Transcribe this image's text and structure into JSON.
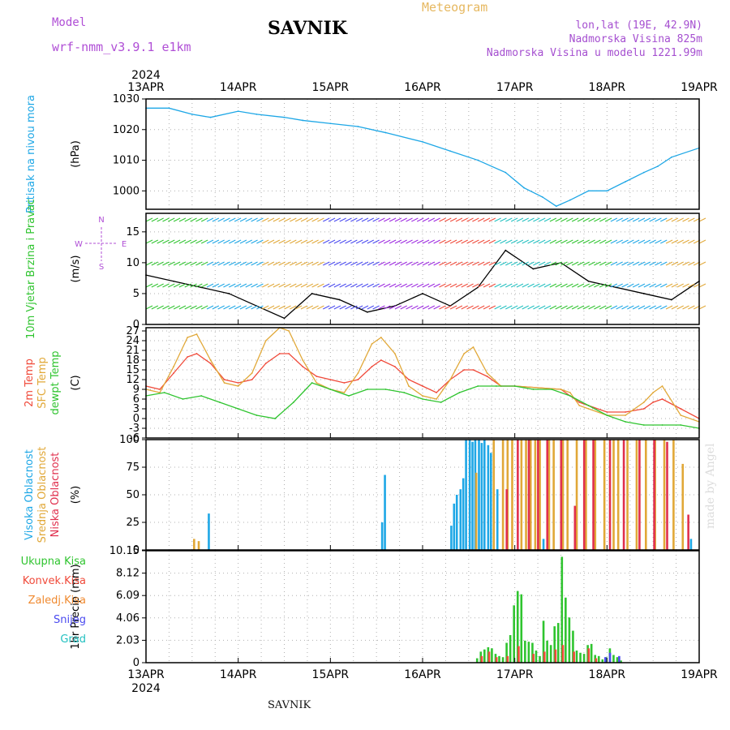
{
  "header": {
    "model_label": "Model",
    "model_name": "wrf-nmm_v3.9.1 e1km",
    "station": "SAVNIK",
    "product": "Meteogram",
    "coords": "lon,lat (19E, 42.9N)",
    "altitude": "Nadmorska Visina 825m",
    "model_altitude": "Nadmorska Visina u modelu 1221.99m"
  },
  "footer": {
    "station": "SAVNIK",
    "credit": "made by Angel"
  },
  "colors": {
    "pressure": "#1ea7e6",
    "temp2m": "#f04a3a",
    "sfc_temp": "#e1a838",
    "dewpt": "#2fc42f",
    "cloud_high": "#1ea7e6",
    "cloud_mid": "#e1a838",
    "cloud_low": "#e0304e",
    "rain_total": "#2fc42f",
    "rain_conv": "#f04a3a",
    "rain_frz": "#f08a30",
    "snow": "#4a4af0",
    "hail": "#22c0c0"
  },
  "chart_data": [
    {
      "type": "line",
      "panel": "pressure",
      "title": "Pritisak na nivou mora",
      "ylabel": "(hPa)",
      "x_start": "2024-04-13",
      "x_end": "2024-04-19",
      "x_ticks": [
        "13APR",
        "14APR",
        "15APR",
        "16APR",
        "17APR",
        "18APR",
        "19APR"
      ],
      "x_year": "2024",
      "ylim": [
        994,
        1030
      ],
      "y_ticks": [
        "1000",
        "1010",
        "1020",
        "1030"
      ],
      "y_tick_values": [
        1000,
        1010,
        1020,
        1030
      ],
      "series": [
        {
          "key": "pressure",
          "x_days": [
            0,
            0.25,
            0.5,
            0.7,
            1.0,
            1.2,
            1.5,
            1.7,
            2.0,
            2.3,
            2.6,
            3.0,
            3.3,
            3.6,
            3.9,
            4.1,
            4.3,
            4.45,
            4.6,
            4.8,
            5.0,
            5.2,
            5.4,
            5.55,
            5.7,
            6.0
          ],
          "y": [
            1027,
            1027,
            1025,
            1024,
            1026,
            1025,
            1024,
            1023,
            1022,
            1021,
            1019,
            1016,
            1013,
            1010,
            1006,
            1001,
            998,
            995,
            997,
            1000,
            1000,
            1003,
            1006,
            1008,
            1011,
            1014
          ]
        }
      ]
    },
    {
      "type": "line",
      "panel": "wind",
      "title": "10m Vjetar Brzina i Pravac",
      "ylabel": "(m/s)",
      "ylim": [
        0,
        18
      ],
      "y_ticks": [
        "0",
        "5",
        "10",
        "15"
      ],
      "y_tick_values": [
        0,
        5,
        10,
        15
      ],
      "compass": [
        "N",
        "E",
        "S",
        "W"
      ],
      "series": [
        {
          "name": "speed",
          "x_days": [
            0,
            0.3,
            0.6,
            0.9,
            1.2,
            1.5,
            1.8,
            2.1,
            2.4,
            2.7,
            3.0,
            3.3,
            3.6,
            3.9,
            4.2,
            4.5,
            4.8,
            5.1,
            5.4,
            5.7,
            6.0
          ],
          "y": [
            8,
            7,
            6,
            5,
            3,
            1,
            5,
            4,
            2,
            3,
            5,
            3,
            6,
            12,
            9,
            10,
            7,
            6,
            5,
            4,
            7
          ]
        }
      ]
    },
    {
      "type": "line",
      "panel": "temperature",
      "ylabel": "(C)",
      "series_labels": [
        "2m Temp",
        "SFC Temp",
        "dewpt Temp"
      ],
      "ylim": [
        -6,
        28
      ],
      "y_ticks": [
        "-6",
        "-3",
        "0",
        "3",
        "6",
        "9",
        "12",
        "15",
        "18",
        "21",
        "24",
        "27"
      ],
      "y_tick_values": [
        -6,
        -3,
        0,
        3,
        6,
        9,
        12,
        15,
        18,
        21,
        24,
        27
      ],
      "series": [
        {
          "key": "temp2m",
          "name": "2m Temp",
          "x_days": [
            0,
            0.15,
            0.3,
            0.45,
            0.55,
            0.7,
            0.85,
            1.0,
            1.15,
            1.3,
            1.45,
            1.55,
            1.7,
            1.85,
            2.0,
            2.15,
            2.3,
            2.45,
            2.55,
            2.7,
            2.85,
            3.0,
            3.15,
            3.3,
            3.45,
            3.55,
            3.7,
            3.85,
            4.0,
            4.5,
            4.6,
            4.7,
            4.8,
            5.0,
            5.2,
            5.4,
            5.5,
            5.6,
            5.8,
            6.0
          ],
          "y": [
            10,
            9,
            14,
            19,
            20,
            17,
            12,
            11,
            12,
            17,
            20,
            20,
            16,
            13,
            12,
            11,
            12,
            16,
            18,
            16,
            12,
            10,
            8,
            12,
            15,
            15,
            13,
            10,
            10,
            9,
            7,
            5,
            4,
            2,
            2,
            3,
            5,
            6,
            3,
            0
          ]
        },
        {
          "key": "sfc_temp",
          "name": "SFC Temp",
          "x_days": [
            0,
            0.15,
            0.3,
            0.45,
            0.55,
            0.7,
            0.85,
            1.0,
            1.15,
            1.3,
            1.45,
            1.55,
            1.7,
            1.85,
            2.0,
            2.15,
            2.3,
            2.45,
            2.55,
            2.7,
            2.85,
            3.0,
            3.15,
            3.3,
            3.45,
            3.55,
            3.7,
            3.85,
            4.0,
            4.5,
            4.6,
            4.7,
            4.8,
            5.0,
            5.2,
            5.4,
            5.5,
            5.6,
            5.8,
            6.0
          ],
          "y": [
            9,
            8,
            16,
            25,
            26,
            18,
            11,
            10,
            14,
            24,
            28,
            27,
            18,
            11,
            9,
            8,
            14,
            23,
            25,
            20,
            10,
            7,
            6,
            12,
            20,
            22,
            14,
            10,
            10,
            9,
            8,
            4,
            3,
            1,
            1,
            5,
            8,
            10,
            1,
            -1
          ]
        },
        {
          "key": "dewpt",
          "name": "dewpt Temp",
          "x_days": [
            0,
            0.2,
            0.4,
            0.6,
            0.8,
            1.0,
            1.2,
            1.4,
            1.6,
            1.8,
            2.0,
            2.2,
            2.4,
            2.6,
            2.8,
            3.0,
            3.2,
            3.4,
            3.6,
            3.8,
            4.0,
            4.2,
            4.4,
            4.6,
            4.8,
            5.0,
            5.2,
            5.4,
            5.6,
            5.8,
            6.0
          ],
          "y": [
            7,
            8,
            6,
            7,
            5,
            3,
            1,
            0,
            5,
            11,
            9,
            7,
            9,
            9,
            8,
            6,
            5,
            8,
            10,
            10,
            10,
            9,
            9,
            7,
            4,
            1,
            -1,
            -2,
            -2,
            -2,
            -3
          ]
        }
      ]
    },
    {
      "type": "bar",
      "panel": "cloud",
      "ylabel": "(%)",
      "series_labels": [
        "Visoka Oblacnost",
        "Srednja Oblacnost",
        "Niska Oblacnost"
      ],
      "ylim": [
        0,
        100
      ],
      "y_ticks": [
        "0",
        "25",
        "50",
        "75",
        "100"
      ],
      "y_tick_values": [
        0,
        25,
        50,
        75,
        100
      ],
      "series": [
        {
          "key": "cloud_high",
          "name": "Visoka Oblacnost",
          "x_days": [
            0.67,
            2.55,
            2.58,
            3.3,
            3.33,
            3.36,
            3.4,
            3.43,
            3.46,
            3.5,
            3.53,
            3.56,
            3.6,
            3.63,
            3.66,
            3.7,
            3.73,
            3.8,
            4.3,
            5.9
          ],
          "values": [
            33,
            25,
            68,
            22,
            42,
            50,
            55,
            65,
            100,
            100,
            98,
            100,
            100,
            97,
            100,
            95,
            88,
            55,
            10,
            10
          ]
        },
        {
          "key": "cloud_mid",
          "name": "Srednja Oblacnost",
          "x_days": [
            0.5,
            0.55,
            3.56,
            3.75,
            3.85,
            3.9,
            3.95,
            4.05,
            4.1,
            4.15,
            4.2,
            4.25,
            4.35,
            4.4,
            4.5,
            4.55,
            4.65,
            4.75,
            4.85,
            4.95,
            5.05,
            5.1,
            5.2,
            5.3,
            5.4,
            5.5,
            5.6,
            5.7,
            5.8
          ],
          "values": [
            10,
            8,
            70,
            100,
            100,
            100,
            100,
            100,
            100,
            100,
            100,
            100,
            100,
            100,
            100,
            100,
            100,
            100,
            100,
            100,
            100,
            100,
            100,
            100,
            100,
            100,
            100,
            100,
            78
          ]
        },
        {
          "key": "cloud_low",
          "name": "Niska Oblacnost",
          "x_days": [
            3.88,
            4.0,
            4.12,
            4.22,
            4.32,
            4.47,
            4.62,
            4.72,
            4.82,
            5.0,
            5.15,
            5.32,
            5.48,
            5.62,
            5.85
          ],
          "values": [
            55,
            100,
            100,
            100,
            100,
            100,
            40,
            100,
            100,
            100,
            100,
            100,
            100,
            98,
            32
          ]
        }
      ]
    },
    {
      "type": "bar",
      "panel": "precip",
      "ylabel": "1hr Precip (mm)",
      "series_labels": [
        "Ukupna Kisa",
        "Konvek.Kisa",
        "Zaledj.Kisa",
        "Snijeg",
        "Grad"
      ],
      "ylim": [
        0,
        10.15
      ],
      "y_ticks": [
        "0",
        "2.03",
        "4.06",
        "6.09",
        "8.12",
        "10.15"
      ],
      "y_tick_values": [
        0,
        2.03,
        4.06,
        6.09,
        8.12,
        10.15
      ],
      "series": [
        {
          "key": "rain_total",
          "name": "Ukupna Kisa",
          "x_days": [
            3.58,
            3.62,
            3.66,
            3.7,
            3.74,
            3.78,
            3.82,
            3.86,
            3.9,
            3.94,
            3.98,
            4.02,
            4.06,
            4.1,
            4.14,
            4.18,
            4.22,
            4.26,
            4.3,
            4.34,
            4.38,
            4.42,
            4.46,
            4.5,
            4.54,
            4.58,
            4.62,
            4.66,
            4.7,
            4.74,
            4.78,
            4.82,
            4.86,
            4.9,
            4.94,
            4.98,
            5.02,
            5.06,
            5.1,
            5.14
          ],
          "values": [
            0.4,
            1.0,
            1.2,
            1.4,
            1.3,
            0.8,
            0.6,
            0.5,
            1.8,
            2.5,
            5.2,
            6.5,
            6.2,
            2.0,
            1.9,
            1.8,
            1.1,
            0.6,
            3.8,
            2.0,
            1.6,
            3.3,
            3.6,
            9.6,
            5.9,
            4.1,
            2.9,
            1.1,
            0.9,
            0.8,
            1.6,
            1.7,
            0.7,
            0.6,
            0.3,
            0.5,
            1.3,
            0.7,
            0.5,
            0.2
          ]
        },
        {
          "key": "rain_conv",
          "name": "Konvek.Kisa",
          "x_days": [
            3.62,
            3.7,
            3.78,
            3.9,
            4.02,
            4.18,
            4.3,
            4.42,
            4.5,
            4.62,
            4.78,
            4.86
          ],
          "values": [
            0.6,
            1.0,
            0.5,
            0.6,
            1.5,
            0.8,
            1.0,
            1.2,
            1.6,
            1.0,
            1.3,
            0.4
          ]
        },
        {
          "key": "snow",
          "name": "Snijeg",
          "x_days": [
            4.95,
            5.0,
            5.1
          ],
          "values": [
            0.5,
            0.9,
            0.6
          ]
        }
      ]
    }
  ]
}
